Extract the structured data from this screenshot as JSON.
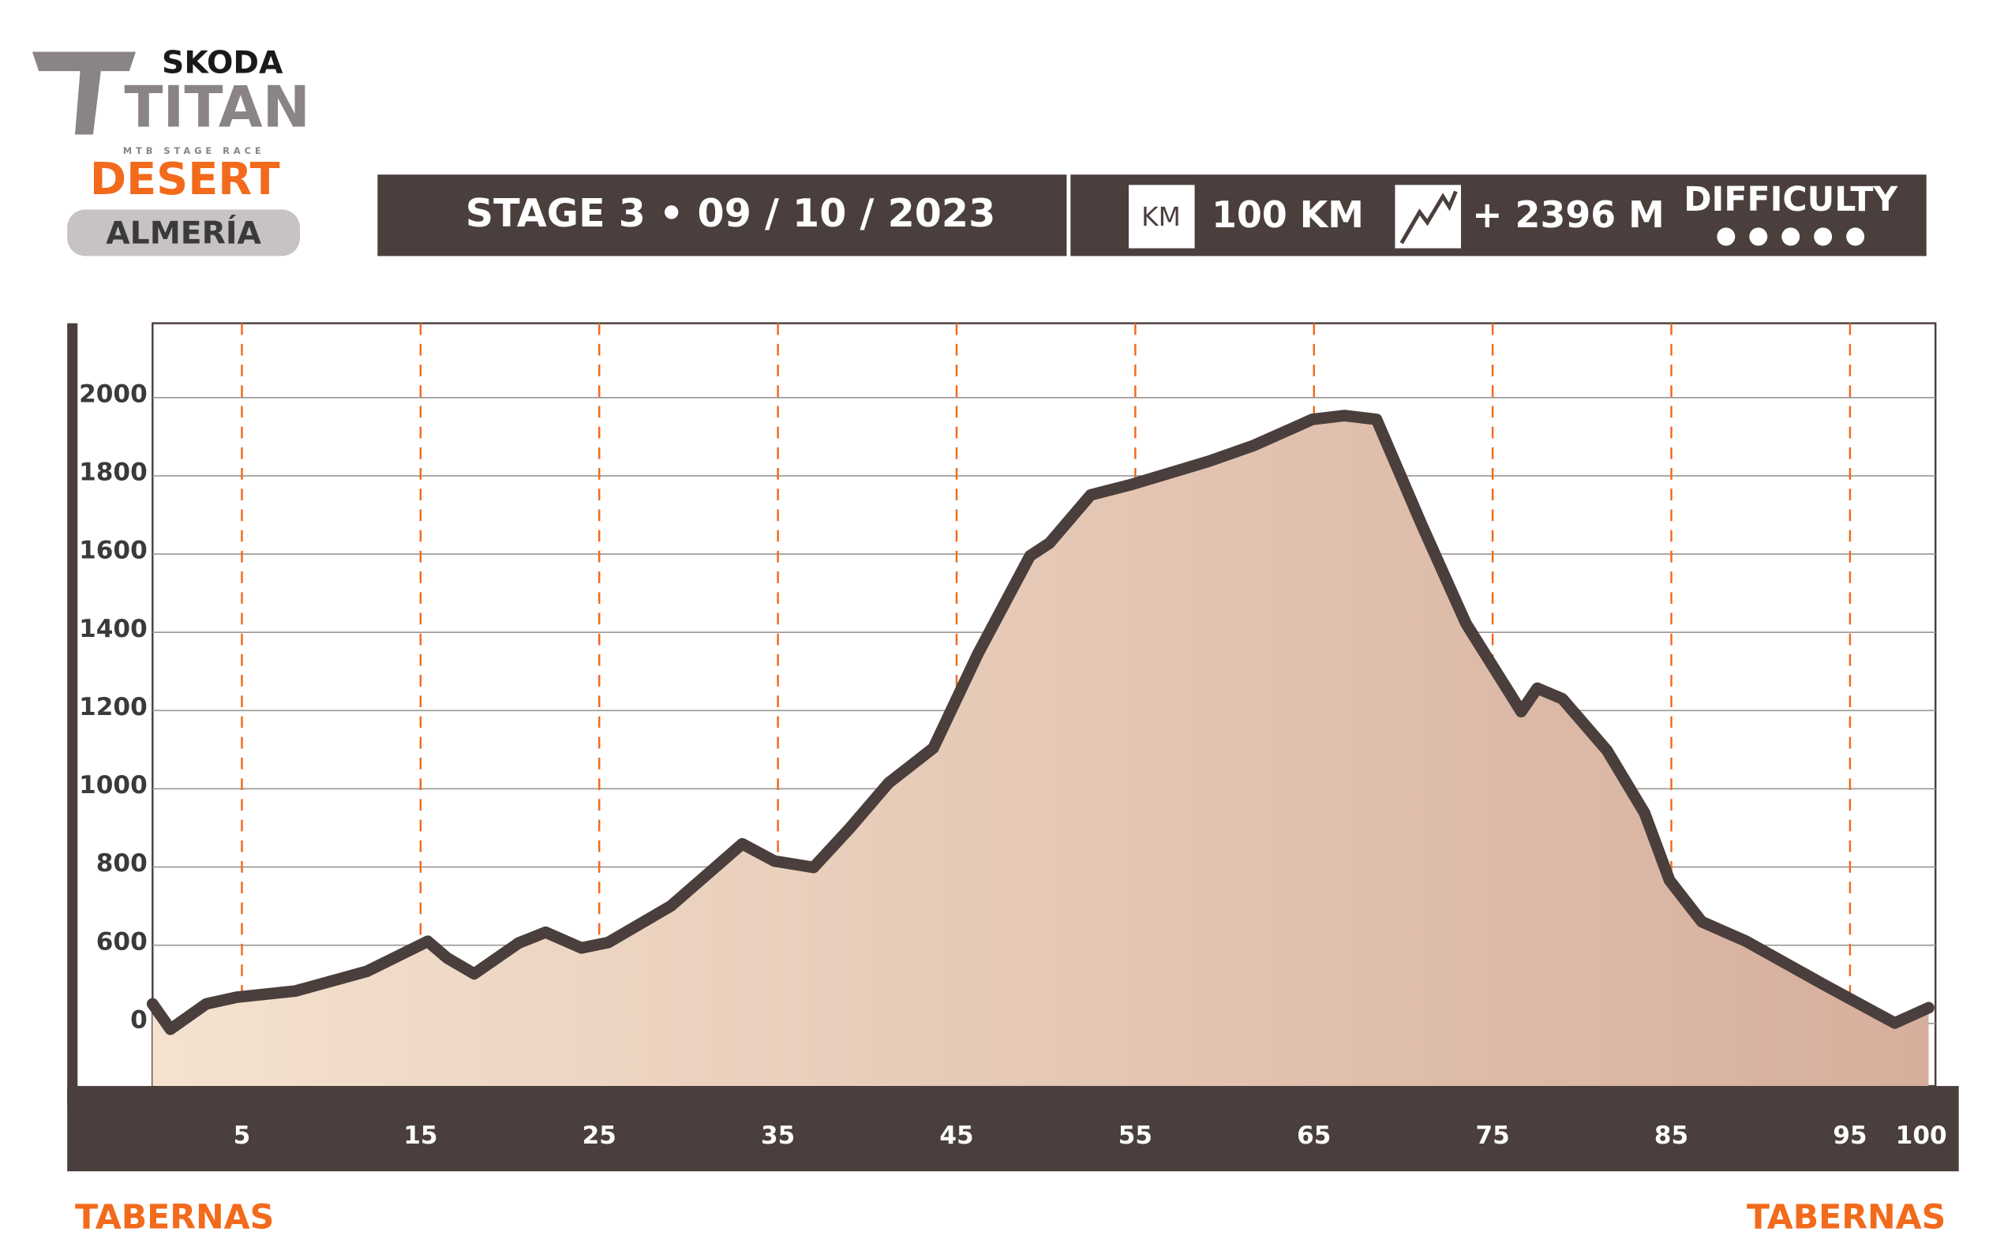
{
  "logo": {
    "brand": "SKODA",
    "name": "TITAN",
    "tagline": "MTB STAGE RACE",
    "edition": "DESERT",
    "region": "ALMERÍA"
  },
  "stage_info": {
    "stage": "STAGE 3 • 09 / 10 / 2023",
    "km_icon": "KM",
    "distance": "100 KM",
    "climb": "+ 2396 M",
    "difficulty": "DIFFICULTY"
  },
  "route": {
    "start": "TABERNAS",
    "finish": "TABERNAS"
  },
  "chart_data": {
    "type": "area",
    "line_color": "#4a3f3c",
    "fill_colors": [
      "#f4e2cf",
      "#d6ae9c"
    ],
    "grid_color": "#f26a1b",
    "x": [
      0,
      1,
      3,
      4.7,
      8,
      12,
      15.4,
      16.5,
      18,
      20.5,
      22,
      24,
      25.5,
      29,
      33,
      34.8,
      37,
      39,
      41.2,
      43.7,
      46.2,
      49.1,
      50.2,
      52.5,
      54.8,
      59.1,
      61.6,
      64.9,
      66.7,
      68.5,
      71,
      73.5,
      76.6,
      77.5,
      78.9,
      81.4,
      83.5,
      84.9,
      86.7,
      89.2,
      93.5,
      97.5,
      99.4
    ],
    "values": [
      450,
      385,
      450,
      467,
      483,
      533,
      610,
      567,
      527,
      606,
      633,
      593,
      607,
      700,
      859,
      815,
      799,
      898,
      1015,
      1104,
      1346,
      1595,
      1628,
      1751,
      1778,
      1837,
      1877,
      1944,
      1954,
      1944,
      1678,
      1423,
      1197,
      1257,
      1230,
      1098,
      938,
      766,
      660,
      610,
      500,
      401,
      440
    ],
    "xlim": [
      0,
      100
    ],
    "xticks": [
      5,
      15,
      25,
      35,
      45,
      55,
      65,
      75,
      85,
      95,
      100
    ],
    "ylim": [
      240,
      2190
    ],
    "yticks": [
      {
        "value": 400,
        "label": "0"
      },
      600,
      800,
      1000,
      1200,
      1400,
      1600,
      1800,
      2000
    ]
  }
}
